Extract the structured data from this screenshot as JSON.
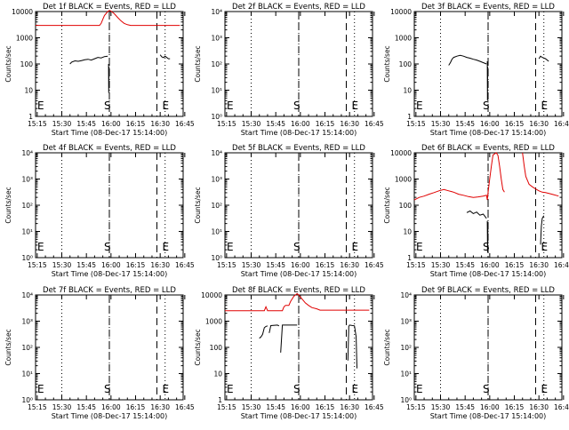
{
  "xticks": [
    "15:15",
    "15:30",
    "15:45",
    "16:00",
    "16:15",
    "16:30",
    "16:45"
  ],
  "xlabel": "Start Time (08-Dec-17 15:14:00)",
  "ylabel": "Counts/sec",
  "chart_data": [
    {
      "type": "line",
      "title": "Det 1f BLACK = Events, RED = LLD",
      "yticks": [
        "1",
        "10",
        "100",
        "1000",
        "10000"
      ],
      "ylog": [
        0,
        4
      ],
      "start_line": "S",
      "end_line": "E",
      "s_time": 45,
      "e_time": 74,
      "dot_times": [
        45,
        79
      ],
      "black": [
        [
          [
            21,
            2.0
          ],
          [
            22,
            2.07
          ],
          [
            24,
            2.12
          ],
          [
            26,
            2.1
          ],
          [
            28,
            2.13
          ],
          [
            30,
            2.16
          ],
          [
            32,
            2.18
          ],
          [
            34,
            2.15
          ],
          [
            36,
            2.2
          ],
          [
            38,
            2.25
          ],
          [
            40,
            2.23
          ],
          [
            42,
            2.28
          ],
          [
            44,
            2.3
          ]
        ],
        [
          [
            44.5,
            2.0
          ],
          [
            44.6,
            0.9
          ],
          [
            44.8,
            1.9
          ]
        ],
        [
          [
            76,
            2.35
          ],
          [
            77,
            2.27
          ],
          [
            78,
            2.24
          ],
          [
            79,
            2.3
          ],
          [
            81,
            2.2
          ],
          [
            82,
            2.2
          ]
        ]
      ],
      "red": [
        [
          [
            0,
            3.47
          ],
          [
            39,
            3.47
          ],
          [
            40,
            3.55
          ],
          [
            41,
            3.7
          ],
          [
            42,
            3.85
          ],
          [
            44,
            4.0
          ],
          [
            45,
            4.04
          ],
          [
            46,
            4.02
          ],
          [
            48,
            3.92
          ],
          [
            50,
            3.78
          ],
          [
            52,
            3.65
          ],
          [
            54,
            3.55
          ],
          [
            56,
            3.5
          ],
          [
            58,
            3.47
          ],
          [
            88,
            3.47
          ]
        ]
      ]
    },
    {
      "type": "line",
      "title": "Det 2f BLACK = Events, RED = LLD",
      "yticks": [
        "10⁰",
        "10¹",
        "10²",
        "10³",
        "10⁴"
      ],
      "ylog": [
        0,
        4
      ],
      "start_line": "S",
      "end_line": "E",
      "s_time": 45,
      "e_time": 74,
      "dot_times": [
        45,
        79
      ],
      "black": [],
      "red": []
    },
    {
      "type": "line",
      "title": "Det 3f BLACK = Events, RED = LLD",
      "yticks": [
        "1",
        "10",
        "100",
        "1000",
        "10000"
      ],
      "ylog": [
        0,
        4
      ],
      "start_line": "S",
      "end_line": "E",
      "s_time": 45,
      "e_time": 74,
      "dot_times": [
        45,
        79
      ],
      "black": [
        [
          [
            21,
            1.95
          ],
          [
            22,
            2.05
          ],
          [
            23,
            2.18
          ],
          [
            24,
            2.25
          ],
          [
            26,
            2.3
          ],
          [
            28,
            2.33
          ],
          [
            30,
            2.3
          ],
          [
            32,
            2.25
          ],
          [
            34,
            2.22
          ],
          [
            36,
            2.18
          ],
          [
            38,
            2.15
          ],
          [
            40,
            2.1
          ],
          [
            42,
            2.05
          ],
          [
            44,
            2.0
          ]
        ],
        [
          [
            44.5,
            2.1
          ],
          [
            44.6,
            0.6
          ],
          [
            44.8,
            1.9
          ]
        ],
        [
          [
            76,
            2.2
          ],
          [
            77,
            2.3
          ],
          [
            78,
            2.25
          ],
          [
            80,
            2.2
          ],
          [
            82,
            2.1
          ]
        ]
      ],
      "red": []
    },
    {
      "type": "line",
      "title": "Det 4f BLACK = Events, RED = LLD",
      "yticks": [
        "10⁰",
        "10¹",
        "10²",
        "10³",
        "10⁴"
      ],
      "ylog": [
        0,
        4
      ],
      "start_line": "S",
      "end_line": "E",
      "s_time": 45,
      "e_time": 74,
      "dot_times": [
        45,
        79
      ],
      "black": [],
      "red": []
    },
    {
      "type": "line",
      "title": "Det 5f BLACK = Events, RED = LLD",
      "yticks": [
        "10⁰",
        "10¹",
        "10²",
        "10³",
        "10⁴"
      ],
      "ylog": [
        0,
        4
      ],
      "start_line": "S",
      "end_line": "E",
      "s_time": 45,
      "e_time": 74,
      "dot_times": [
        45,
        79
      ],
      "black": [],
      "red": []
    },
    {
      "type": "line",
      "title": "Det 6f BLACK = Events, RED = LLD",
      "yticks": [
        "1",
        "10",
        "100",
        "1000",
        "10000"
      ],
      "ylog": [
        0,
        4
      ],
      "start_line": "S",
      "end_line": "E",
      "s_time": 45,
      "e_time": 74,
      "dot_times": [
        45,
        79
      ],
      "black": [
        [
          [
            32,
            1.72
          ],
          [
            34,
            1.78
          ],
          [
            36,
            1.68
          ],
          [
            38,
            1.74
          ],
          [
            40,
            1.62
          ],
          [
            42,
            1.66
          ],
          [
            44,
            1.5
          ]
        ],
        [
          [
            44.5,
            1.4
          ],
          [
            44.7,
            0.2
          ],
          [
            44.9,
            1.2
          ]
        ],
        [
          [
            77,
            0.5
          ],
          [
            77.5,
            1.2
          ],
          [
            78,
            1.5
          ],
          [
            79,
            1.6
          ]
        ]
      ],
      "red": [
        [
          [
            0,
            2.2
          ],
          [
            3,
            2.3
          ],
          [
            6,
            2.35
          ],
          [
            9,
            2.42
          ],
          [
            12,
            2.48
          ],
          [
            15,
            2.55
          ],
          [
            18,
            2.6
          ],
          [
            21,
            2.55
          ],
          [
            24,
            2.5
          ],
          [
            27,
            2.42
          ],
          [
            30,
            2.38
          ],
          [
            33,
            2.33
          ],
          [
            36,
            2.3
          ],
          [
            39,
            2.32
          ],
          [
            42,
            2.35
          ],
          [
            44,
            2.38
          ],
          [
            44.5,
            2.2
          ],
          [
            45,
            2.5
          ],
          [
            46,
            3.0
          ],
          [
            47,
            3.5
          ],
          [
            48,
            3.92
          ],
          [
            50,
            4.0
          ],
          [
            51,
            3.9
          ],
          [
            52,
            3.5
          ],
          [
            53,
            3.0
          ],
          [
            54,
            2.6
          ],
          [
            55,
            2.5
          ]
        ],
        [
          [
            66,
            4.0
          ],
          [
            67,
            3.5
          ],
          [
            68,
            3.1
          ],
          [
            70,
            2.8
          ],
          [
            72,
            2.7
          ],
          [
            74,
            2.62
          ],
          [
            76,
            2.55
          ],
          [
            78,
            2.5
          ],
          [
            80,
            2.48
          ],
          [
            84,
            2.42
          ],
          [
            88,
            2.35
          ]
        ]
      ]
    },
    {
      "type": "line",
      "title": "Det 7f BLACK = Events, RED = LLD",
      "yticks": [
        "10⁰",
        "10¹",
        "10²",
        "10³",
        "10⁴"
      ],
      "ylog": [
        0,
        4
      ],
      "start_line": "S",
      "end_line": "E",
      "s_time": 45,
      "e_time": 74,
      "dot_times": [
        45,
        79
      ],
      "black": [],
      "red": []
    },
    {
      "type": "line",
      "title": "Det 8f BLACK = Events, RED = LLD",
      "yticks": [
        "1",
        "10",
        "100",
        "1000",
        "10000"
      ],
      "ylog": [
        0,
        4
      ],
      "start_line": "S",
      "end_line": "E",
      "s_time": 45,
      "e_time": 74,
      "dot_times": [
        45,
        79
      ],
      "black": [
        [
          [
            21,
            2.35
          ],
          [
            22,
            2.4
          ],
          [
            23,
            2.5
          ],
          [
            24,
            2.75
          ],
          [
            25,
            2.8
          ],
          [
            26,
            2.82
          ]
        ],
        [
          [
            27,
            2.55
          ],
          [
            28,
            2.83
          ],
          [
            32,
            2.85
          ],
          [
            33,
            2.82
          ]
        ],
        [
          [
            34,
            1.8
          ],
          [
            35,
            2.85
          ],
          [
            44,
            2.85
          ]
        ],
        [
          [
            75,
            1.5
          ],
          [
            75.5,
            2.8
          ],
          [
            76,
            2.85
          ],
          [
            79,
            2.82
          ],
          [
            80,
            2.4
          ],
          [
            80.5,
            1.2
          ]
        ]
      ],
      "red": [
        [
          [
            0,
            3.4
          ],
          [
            24,
            3.4
          ],
          [
            25,
            3.55
          ],
          [
            26,
            3.4
          ],
          [
            35,
            3.4
          ],
          [
            36,
            3.55
          ],
          [
            37,
            3.6
          ],
          [
            39,
            3.6
          ],
          [
            40,
            3.75
          ],
          [
            42,
            3.95
          ],
          [
            44,
            4.05
          ],
          [
            45,
            4.0
          ],
          [
            47,
            3.85
          ],
          [
            49,
            3.7
          ],
          [
            51,
            3.6
          ],
          [
            53,
            3.52
          ],
          [
            56,
            3.47
          ],
          [
            58,
            3.42
          ],
          [
            88,
            3.42
          ]
        ]
      ]
    },
    {
      "type": "line",
      "title": "Det 9f BLACK = Events, RED = LLD",
      "yticks": [
        "10⁰",
        "10¹",
        "10²",
        "10³",
        "10⁴"
      ],
      "ylog": [
        0,
        4
      ],
      "start_line": "S",
      "end_line": "E",
      "s_time": 45,
      "e_time": 74,
      "dot_times": [
        45,
        79
      ],
      "black": [],
      "red": []
    }
  ]
}
